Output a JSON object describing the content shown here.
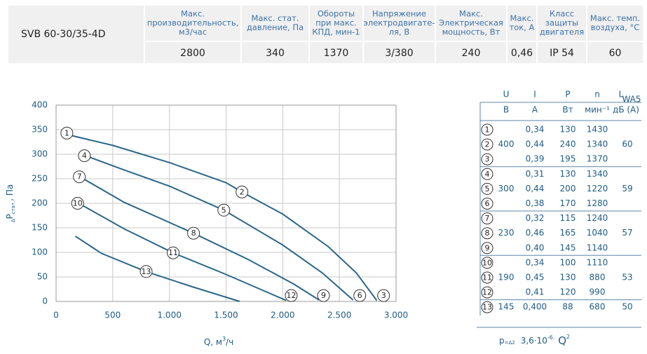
{
  "spec_table": {
    "model": "SVB 60-30/35-4D",
    "columns": [
      {
        "header": [
          "Макс.",
          "производительность,",
          "м3/час"
        ],
        "value": "2800"
      },
      {
        "header": [
          "Макс. стат.",
          "давление, Па"
        ],
        "value": "340"
      },
      {
        "header": [
          "Обороты",
          "при макс.",
          "КПД, мин-1"
        ],
        "value": "1370"
      },
      {
        "header": [
          "Напряжение",
          "электродвигате-",
          "ля, В"
        ],
        "value": "3/380"
      },
      {
        "header": [
          "Макс.",
          "Электрическая",
          "мощность, Вт"
        ],
        "value": "240"
      },
      {
        "header": [
          "Макс.",
          "ток, А"
        ],
        "value": "0,46"
      },
      {
        "header": [
          "Класс",
          "защиты",
          "двигателя"
        ],
        "value": "IP 54"
      },
      {
        "header": [
          "Макс. темп.",
          "воздуха, °C"
        ],
        "value": "60"
      }
    ]
  },
  "chart_data": {
    "type": "line",
    "xlabel": {
      "text": "Q, м",
      "sup": "3",
      "tail": "/ч"
    },
    "ylabel": {
      "pre": "Δ",
      "main": "P",
      "sub": "стат.",
      "unit": ", Па"
    },
    "xlim": [
      0,
      3000
    ],
    "ylim": [
      0,
      400
    ],
    "xticks": [
      0,
      500,
      {
        "value": 1000,
        "label": "1.000"
      },
      {
        "value": 1500,
        "label": "1.500"
      },
      {
        "value": 2000,
        "label": "2.000"
      },
      {
        "value": 2500,
        "label": "2.500"
      },
      {
        "value": 3000,
        "label": "3.000"
      }
    ],
    "yticks": [
      0,
      50,
      100,
      150,
      200,
      250,
      300,
      350,
      400
    ],
    "grid": true,
    "series": [
      {
        "color": "#2b6688",
        "x": [
          100,
          500,
          1000,
          1500,
          1640,
          2000,
          2400,
          2650,
          2830
        ],
        "values": [
          340,
          318,
          283,
          242,
          223,
          178,
          112,
          58,
          2
        ]
      },
      {
        "color": "#2b6688",
        "x": [
          260,
          600,
          1000,
          1480,
          2000,
          2350,
          2620
        ],
        "values": [
          297,
          268,
          235,
          186,
          115,
          58,
          3
        ]
      },
      {
        "color": "#2b6688",
        "x": [
          210,
          600,
          1213,
          1700,
          2100,
          2320
        ],
        "values": [
          254,
          202,
          139,
          85,
          35,
          3
        ]
      },
      {
        "color": "#2b6688",
        "x": [
          200,
          600,
          1033,
          1500,
          1850,
          2030
        ],
        "values": [
          200,
          148,
          99,
          55,
          20,
          2
        ]
      },
      {
        "color": "#2b6688",
        "x": [
          170,
          400,
          792,
          1200,
          1620
        ],
        "values": [
          133,
          98,
          61,
          30,
          0
        ]
      }
    ],
    "markers": [
      {
        "label": "1",
        "x": 95,
        "y": 343
      },
      {
        "label": "2",
        "x": 1640,
        "y": 223
      },
      {
        "label": "3",
        "x": 2890,
        "y": 12
      },
      {
        "label": "4",
        "x": 250,
        "y": 297
      },
      {
        "label": "5",
        "x": 1480,
        "y": 186
      },
      {
        "label": "6",
        "x": 2680,
        "y": 12
      },
      {
        "label": "7",
        "x": 205,
        "y": 254
      },
      {
        "label": "8",
        "x": 1213,
        "y": 139
      },
      {
        "label": "9",
        "x": 2360,
        "y": 12
      },
      {
        "label": "10",
        "x": 190,
        "y": 200
      },
      {
        "label": "11",
        "x": 1033,
        "y": 99
      },
      {
        "label": "12",
        "x": 2075,
        "y": 12
      },
      {
        "label": "13",
        "x": 795,
        "y": 61
      }
    ]
  },
  "speed_table": {
    "headers": [
      "U",
      "I",
      "P",
      "n",
      "L"
    ],
    "l_sub": "WA5",
    "units": [
      "В",
      "А",
      "Вт",
      "мин⁻¹",
      "дБ (А)"
    ],
    "groups": [
      {
        "U": "400",
        "L": "60",
        "rows": [
          [
            "0,34",
            "130",
            "1430"
          ],
          [
            "0,44",
            "240",
            "1340"
          ],
          [
            "0,39",
            "195",
            "1370"
          ]
        ]
      },
      {
        "U": "300",
        "L": "59",
        "rows": [
          [
            "0,31",
            "130",
            "1340"
          ],
          [
            "0,44",
            "200",
            "1220"
          ],
          [
            "0,38",
            "170",
            "1280"
          ]
        ]
      },
      {
        "U": "230",
        "L": "57",
        "rows": [
          [
            "0,32",
            "115",
            "1240"
          ],
          [
            "0,46",
            "165",
            "1040"
          ],
          [
            "0,40",
            "145",
            "1140"
          ]
        ]
      },
      {
        "U": "190",
        "L": "53",
        "rows": [
          [
            "0,34",
            "100",
            "1110"
          ],
          [
            "0,45",
            "130",
            "880"
          ],
          [
            "0,41",
            "120",
            "990"
          ]
        ]
      },
      {
        "U": "145",
        "L": "50",
        "rows": [
          [
            "0,400",
            "88",
            "680"
          ]
        ]
      }
    ]
  },
  "formula": {
    "lhs": "p",
    "lhs_sub": "=Δ2",
    "coef": "3,6·10",
    "exp": "-6.",
    "var": " Q",
    "exp2": "2"
  }
}
